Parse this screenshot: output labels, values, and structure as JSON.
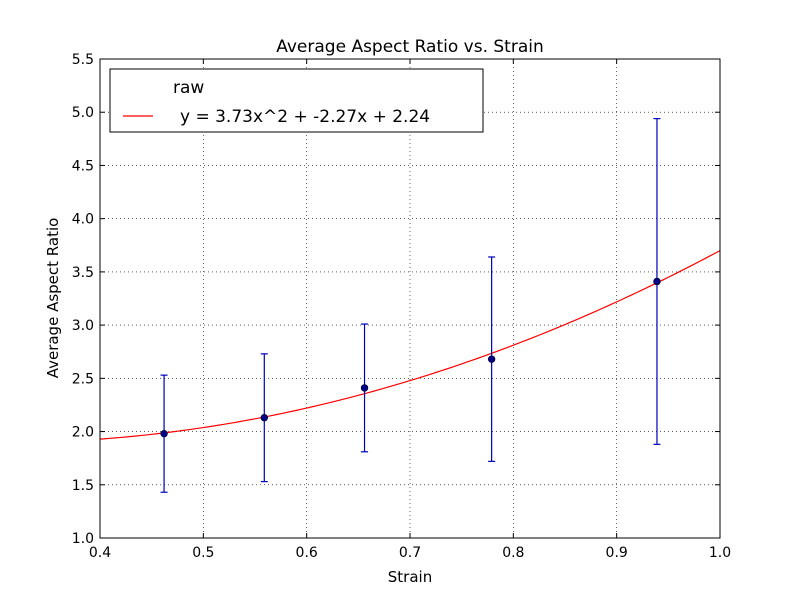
{
  "chart_data": {
    "type": "scatter",
    "title": "Average Aspect Ratio vs. Strain",
    "xlabel": "Strain",
    "ylabel": "Average Aspect Ratio",
    "xlim": [
      0.4,
      1.0
    ],
    "ylim": [
      1.0,
      5.5
    ],
    "xticks": [
      "0.4",
      "0.5",
      "0.6",
      "0.7",
      "0.8",
      "0.9",
      "1.0"
    ],
    "yticks": [
      "1.0",
      "1.5",
      "2.0",
      "2.5",
      "3.0",
      "3.5",
      "4.0",
      "4.5",
      "5.0",
      "5.5"
    ],
    "grid": true,
    "legend_position": "top-left",
    "series": [
      {
        "name": "raw",
        "kind": "errorbar",
        "color": "#0000bb",
        "points": [
          {
            "x": 0.462,
            "y": 1.98,
            "yerr": 0.55
          },
          {
            "x": 0.559,
            "y": 2.13,
            "yerr": 0.6
          },
          {
            "x": 0.656,
            "y": 2.41,
            "yerr": 0.6
          },
          {
            "x": 0.779,
            "y": 2.68,
            "yerr": 0.96
          },
          {
            "x": 0.939,
            "y": 3.41,
            "yerr": 1.53
          }
        ]
      },
      {
        "name": "y = 3.73x^2 + -2.27x + 2.24",
        "kind": "fit",
        "color": "#ff0000",
        "coefficients": [
          3.73,
          -2.27,
          2.24
        ]
      }
    ]
  }
}
